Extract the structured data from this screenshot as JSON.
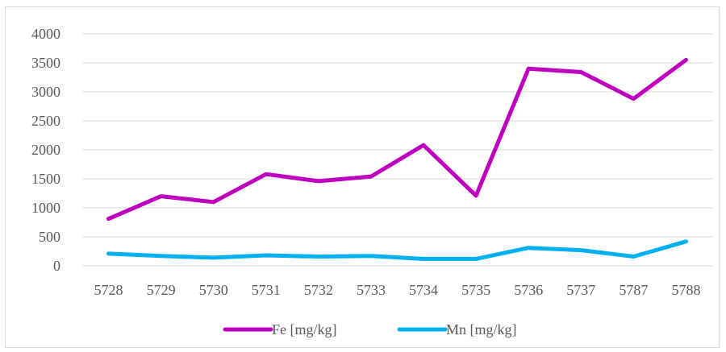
{
  "chart_data": {
    "type": "line",
    "title": "",
    "xlabel": "",
    "ylabel": "",
    "categories": [
      "5728",
      "5729",
      "5730",
      "5731",
      "5732",
      "5733",
      "5734",
      "5735",
      "5736",
      "5737",
      "5787",
      "5788"
    ],
    "ylim": [
      0,
      4000
    ],
    "yticks": [
      0,
      500,
      1000,
      1500,
      2000,
      2500,
      3000,
      3500,
      4000
    ],
    "grid": true,
    "legend_position": "bottom",
    "series": [
      {
        "name": "Fe [mg/kg]",
        "color": "#c000c0",
        "values": [
          810,
          1200,
          1100,
          1580,
          1460,
          1540,
          2080,
          1210,
          3400,
          3340,
          2880,
          3550
        ]
      },
      {
        "name": "Mn [mg/kg]",
        "color": "#00b0f0",
        "values": [
          210,
          170,
          140,
          180,
          160,
          170,
          120,
          120,
          310,
          270,
          160,
          420
        ]
      }
    ]
  }
}
